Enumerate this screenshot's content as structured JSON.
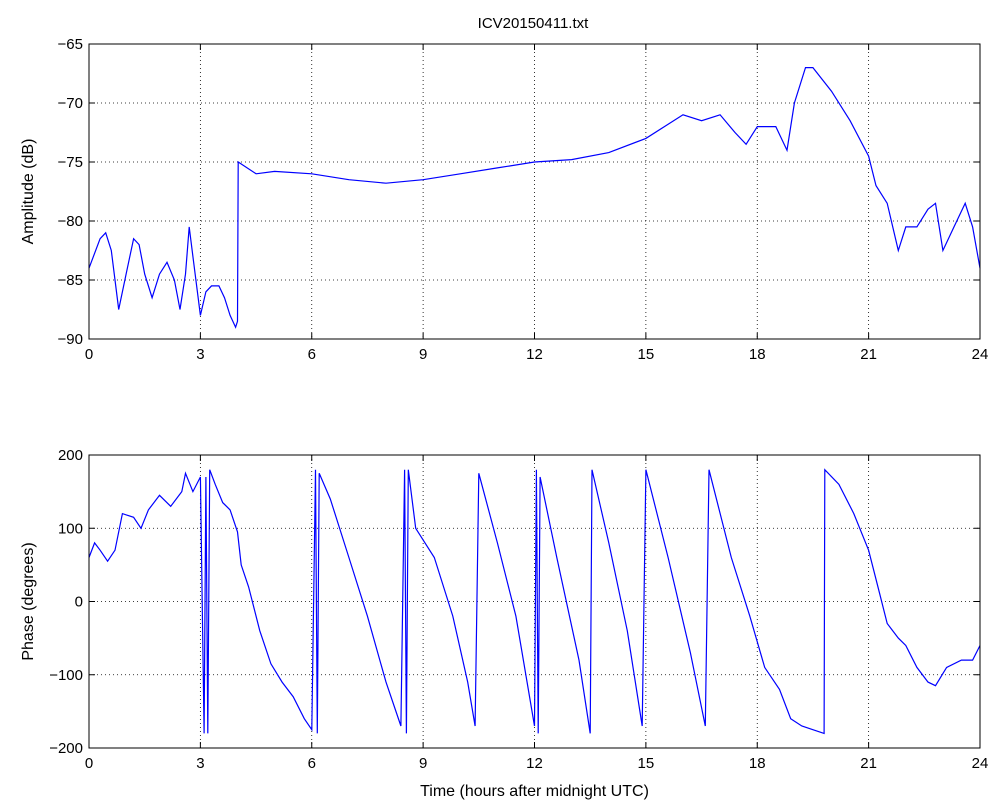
{
  "figure_title": "ICV20150411.txt",
  "chart_data": [
    {
      "type": "line",
      "title": "ICV20150411.txt",
      "xlabel": "",
      "ylabel": "Amplitude (dB)",
      "xlim": [
        0,
        24
      ],
      "ylim": [
        -90,
        -65
      ],
      "xticks": [
        0,
        3,
        6,
        9,
        12,
        15,
        18,
        21,
        24
      ],
      "yticks": [
        -90,
        -85,
        -80,
        -75,
        -70,
        -65
      ],
      "grid": true,
      "series": [
        {
          "color": "#0000ff",
          "points": [
            [
              0.0,
              -84.0
            ],
            [
              0.3,
              -81.5
            ],
            [
              0.45,
              -81.0
            ],
            [
              0.6,
              -82.5
            ],
            [
              0.8,
              -87.5
            ],
            [
              1.0,
              -84.5
            ],
            [
              1.2,
              -81.5
            ],
            [
              1.35,
              -82.0
            ],
            [
              1.5,
              -84.5
            ],
            [
              1.7,
              -86.5
            ],
            [
              1.9,
              -84.5
            ],
            [
              2.1,
              -83.5
            ],
            [
              2.3,
              -85.0
            ],
            [
              2.45,
              -87.5
            ],
            [
              2.6,
              -84.5
            ],
            [
              2.7,
              -80.5
            ],
            [
              2.8,
              -83.0
            ],
            [
              3.0,
              -88.0
            ],
            [
              3.15,
              -86.0
            ],
            [
              3.3,
              -85.5
            ],
            [
              3.5,
              -85.5
            ],
            [
              3.65,
              -86.5
            ],
            [
              3.8,
              -88.0
            ],
            [
              3.95,
              -89.0
            ],
            [
              4.0,
              -88.5
            ],
            [
              4.02,
              -75.0
            ],
            [
              4.5,
              -76.0
            ],
            [
              5.0,
              -75.8
            ],
            [
              6.0,
              -76.0
            ],
            [
              7.0,
              -76.5
            ],
            [
              8.0,
              -76.8
            ],
            [
              9.0,
              -76.5
            ],
            [
              10.0,
              -76.0
            ],
            [
              11.0,
              -75.5
            ],
            [
              12.0,
              -75.0
            ],
            [
              13.0,
              -74.8
            ],
            [
              14.0,
              -74.2
            ],
            [
              15.0,
              -73.0
            ],
            [
              15.5,
              -72.0
            ],
            [
              16.0,
              -71.0
            ],
            [
              16.5,
              -71.5
            ],
            [
              17.0,
              -71.0
            ],
            [
              17.4,
              -72.5
            ],
            [
              17.7,
              -73.5
            ],
            [
              18.0,
              -72.0
            ],
            [
              18.5,
              -72.0
            ],
            [
              18.8,
              -74.0
            ],
            [
              19.0,
              -70.0
            ],
            [
              19.3,
              -67.0
            ],
            [
              19.5,
              -67.0
            ],
            [
              20.0,
              -69.0
            ],
            [
              20.5,
              -71.5
            ],
            [
              21.0,
              -74.5
            ],
            [
              21.2,
              -77.0
            ],
            [
              21.5,
              -78.5
            ],
            [
              21.8,
              -82.5
            ],
            [
              22.0,
              -80.5
            ],
            [
              22.3,
              -80.5
            ],
            [
              22.6,
              -79.0
            ],
            [
              22.8,
              -78.5
            ],
            [
              23.0,
              -82.5
            ],
            [
              23.3,
              -80.5
            ],
            [
              23.6,
              -78.5
            ],
            [
              23.8,
              -80.5
            ],
            [
              24.0,
              -84.0
            ]
          ]
        }
      ]
    },
    {
      "type": "line",
      "title": "",
      "xlabel": "Time (hours after midnight UTC)",
      "ylabel": "Phase (degrees)",
      "xlim": [
        0,
        24
      ],
      "ylim": [
        -200,
        200
      ],
      "xticks": [
        0,
        3,
        6,
        9,
        12,
        15,
        18,
        21,
        24
      ],
      "yticks": [
        -200,
        -100,
        0,
        100,
        200
      ],
      "grid": true,
      "series": [
        {
          "color": "#0000ff",
          "points": [
            [
              0.0,
              60
            ],
            [
              0.15,
              80
            ],
            [
              0.3,
              70
            ],
            [
              0.5,
              55
            ],
            [
              0.7,
              70
            ],
            [
              0.9,
              120
            ],
            [
              1.2,
              115
            ],
            [
              1.4,
              100
            ],
            [
              1.6,
              125
            ],
            [
              1.9,
              145
            ],
            [
              2.2,
              130
            ],
            [
              2.5,
              150
            ],
            [
              2.6,
              175
            ],
            [
              2.8,
              150
            ],
            [
              3.0,
              170
            ],
            [
              3.1,
              -180
            ],
            [
              3.15,
              170
            ],
            [
              3.2,
              -180
            ],
            [
              3.25,
              180
            ],
            [
              3.4,
              160
            ],
            [
              3.6,
              135
            ],
            [
              3.8,
              125
            ],
            [
              4.0,
              95
            ],
            [
              4.1,
              50
            ],
            [
              4.3,
              20
            ],
            [
              4.6,
              -40
            ],
            [
              4.9,
              -85
            ],
            [
              5.2,
              -110
            ],
            [
              5.5,
              -130
            ],
            [
              5.8,
              -160
            ],
            [
              6.0,
              -175
            ],
            [
              6.1,
              180
            ],
            [
              6.15,
              -180
            ],
            [
              6.2,
              175
            ],
            [
              6.5,
              140
            ],
            [
              7.0,
              60
            ],
            [
              7.5,
              -20
            ],
            [
              8.0,
              -110
            ],
            [
              8.4,
              -170
            ],
            [
              8.5,
              180
            ],
            [
              8.55,
              -180
            ],
            [
              8.6,
              180
            ],
            [
              8.8,
              100
            ],
            [
              9.3,
              60
            ],
            [
              9.8,
              -20
            ],
            [
              10.2,
              -110
            ],
            [
              10.4,
              -170
            ],
            [
              10.5,
              175
            ],
            [
              11.0,
              80
            ],
            [
              11.5,
              -20
            ],
            [
              12.0,
              -170
            ],
            [
              12.05,
              180
            ],
            [
              12.1,
              -180
            ],
            [
              12.15,
              170
            ],
            [
              12.6,
              60
            ],
            [
              13.2,
              -80
            ],
            [
              13.5,
              -180
            ],
            [
              13.55,
              180
            ],
            [
              14.0,
              80
            ],
            [
              14.5,
              -40
            ],
            [
              14.9,
              -170
            ],
            [
              15.0,
              180
            ],
            [
              15.6,
              60
            ],
            [
              16.2,
              -70
            ],
            [
              16.6,
              -170
            ],
            [
              16.7,
              180
            ],
            [
              17.3,
              60
            ],
            [
              17.8,
              -20
            ],
            [
              18.2,
              -90
            ],
            [
              18.6,
              -120
            ],
            [
              18.9,
              -160
            ],
            [
              19.2,
              -170
            ],
            [
              19.5,
              -175
            ],
            [
              19.8,
              -180
            ],
            [
              19.82,
              180
            ],
            [
              20.2,
              160
            ],
            [
              20.6,
              120
            ],
            [
              21.0,
              70
            ],
            [
              21.3,
              10
            ],
            [
              21.5,
              -30
            ],
            [
              21.8,
              -50
            ],
            [
              22.0,
              -60
            ],
            [
              22.3,
              -90
            ],
            [
              22.6,
              -110
            ],
            [
              22.8,
              -115
            ],
            [
              23.1,
              -90
            ],
            [
              23.5,
              -80
            ],
            [
              23.8,
              -80
            ],
            [
              24.0,
              -60
            ]
          ]
        }
      ]
    }
  ]
}
